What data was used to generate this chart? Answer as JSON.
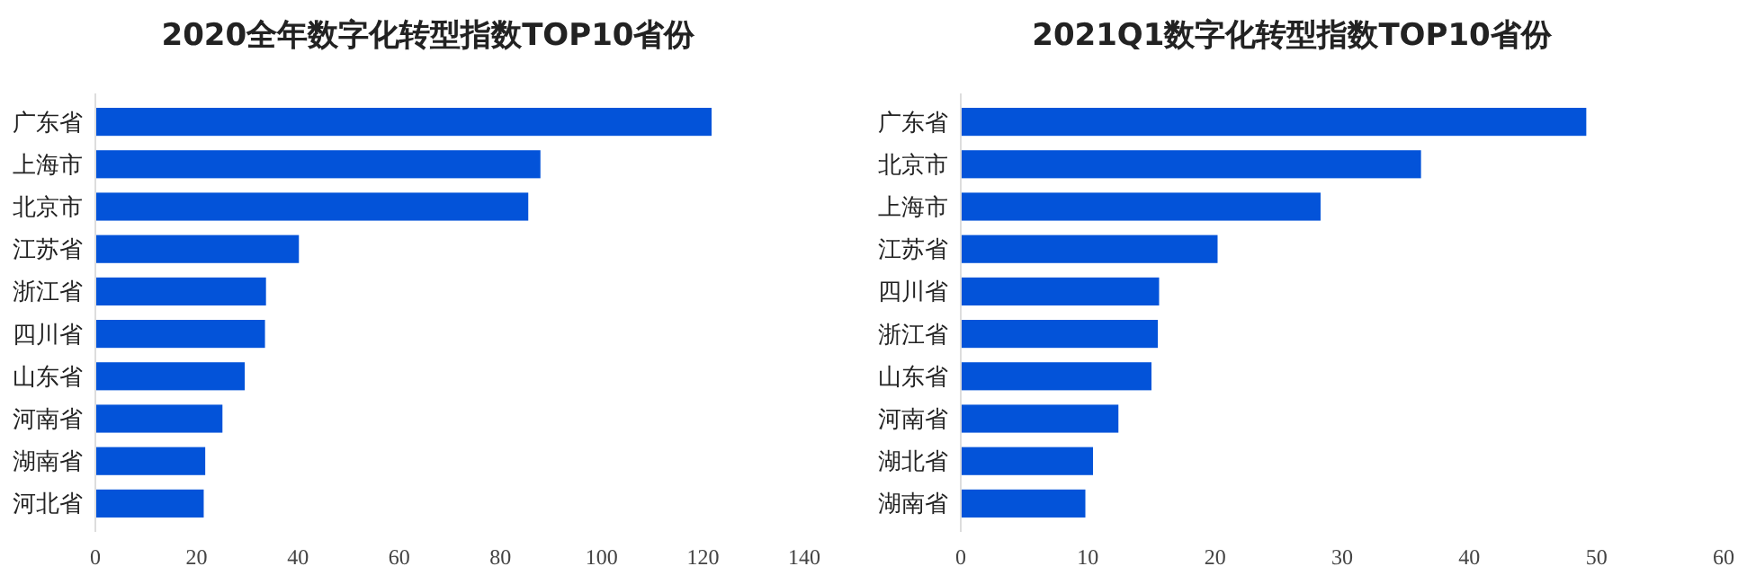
{
  "chart_data": [
    {
      "type": "bar",
      "orientation": "horizontal",
      "title": "2020全年数字化转型指数TOP10省份",
      "categories": [
        "广东省",
        "上海市",
        "北京市",
        "江苏省",
        "浙江省",
        "四川省",
        "山东省",
        "河南省",
        "湖南省",
        "河北省"
      ],
      "values": [
        121.7,
        87.9,
        85.5,
        40.2,
        33.7,
        33.5,
        29.5,
        25.1,
        21.7,
        21.4
      ],
      "color": "#0353d9",
      "xlim": [
        0,
        140
      ],
      "xticks": [
        0,
        20,
        40,
        60,
        80,
        100,
        120,
        140
      ]
    },
    {
      "type": "bar",
      "orientation": "horizontal",
      "title": "2021Q1数字化转型指数TOP10省份",
      "categories": [
        "广东省",
        "北京市",
        "上海市",
        "江苏省",
        "四川省",
        "浙江省",
        "山东省",
        "河南省",
        "湖北省",
        "湖南省"
      ],
      "values": [
        49.2,
        36.2,
        28.3,
        20.2,
        15.6,
        15.5,
        15.0,
        12.4,
        10.4,
        9.8
      ],
      "color": "#0353d9",
      "xlim": [
        0,
        60
      ],
      "xticks": [
        0,
        10,
        20,
        30,
        40,
        50,
        60
      ]
    }
  ]
}
